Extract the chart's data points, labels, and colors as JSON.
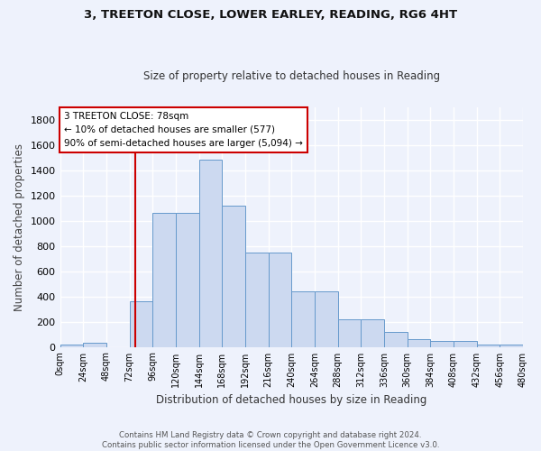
{
  "title_line1": "3, TREETON CLOSE, LOWER EARLEY, READING, RG6 4HT",
  "title_line2": "Size of property relative to detached houses in Reading",
  "xlabel": "Distribution of detached houses by size in Reading",
  "ylabel": "Number of detached properties",
  "bar_color": "#ccd9f0",
  "bar_edge_color": "#6699cc",
  "background_color": "#eef2fc",
  "grid_color": "#ffffff",
  "bin_edges": [
    0,
    24,
    48,
    72,
    96,
    120,
    144,
    168,
    192,
    216,
    240,
    264,
    288,
    312,
    336,
    360,
    384,
    408,
    432,
    456,
    480
  ],
  "bin_labels": [
    "0sqm",
    "24sqm",
    "48sqm",
    "72sqm",
    "96sqm",
    "120sqm",
    "144sqm",
    "168sqm",
    "192sqm",
    "216sqm",
    "240sqm",
    "264sqm",
    "288sqm",
    "312sqm",
    "336sqm",
    "360sqm",
    "384sqm",
    "408sqm",
    "432sqm",
    "456sqm",
    "480sqm"
  ],
  "bar_heights": [
    15,
    30,
    0,
    360,
    1060,
    1060,
    1480,
    1120,
    750,
    750,
    440,
    440,
    220,
    220,
    115,
    60,
    45,
    45,
    20,
    20,
    10
  ],
  "property_size": 78,
  "annotation_text": "3 TREETON CLOSE: 78sqm\n← 10% of detached houses are smaller (577)\n90% of semi-detached houses are larger (5,094) →",
  "annotation_box_color": "#ffffff",
  "annotation_box_edge_color": "#cc0000",
  "vline_color": "#cc0000",
  "vline_x": 78,
  "ylim": [
    0,
    1900
  ],
  "yticks": [
    0,
    200,
    400,
    600,
    800,
    1000,
    1200,
    1400,
    1600,
    1800
  ],
  "footer_line1": "Contains HM Land Registry data © Crown copyright and database right 2024.",
  "footer_line2": "Contains public sector information licensed under the Open Government Licence v3.0."
}
